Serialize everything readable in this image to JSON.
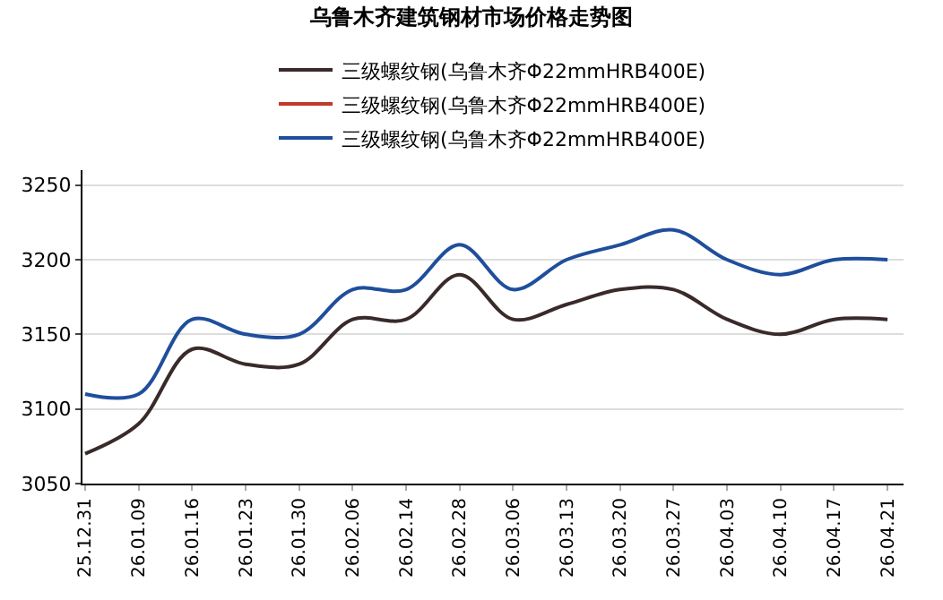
{
  "chart_data": {
    "type": "line",
    "title": "乌鲁木齐建筑钢材市场价格走势图",
    "categories": [
      "25.12.31",
      "26.01.09",
      "26.01.16",
      "26.01.23",
      "26.01.30",
      "26.02.06",
      "26.02.14",
      "26.02.28",
      "26.03.06",
      "26.03.13",
      "26.03.20",
      "26.03.27",
      "26.04.03",
      "26.04.10",
      "26.04.17",
      "26.04.21"
    ],
    "series": [
      {
        "name": "三级螺纹钢(乌鲁木齐Φ22mmHRB400E)",
        "color": "#3a2a2a",
        "values": [
          3070,
          3090,
          3140,
          3130,
          3130,
          3160,
          3160,
          3190,
          3160,
          3170,
          3180,
          3180,
          3160,
          3150,
          3160,
          3160
        ]
      },
      {
        "name": "三级螺纹钢(乌鲁木齐Φ22mmHRB400E)",
        "color": "#c0392b",
        "values": [
          null,
          null,
          null,
          null,
          null,
          null,
          null,
          null,
          null,
          null,
          null,
          null,
          null,
          null,
          null,
          null
        ]
      },
      {
        "name": "三级螺纹钢(乌鲁木齐Φ22mmHRB400E)",
        "color": "#1f4e9c",
        "values": [
          3110,
          3110,
          3160,
          3150,
          3150,
          3180,
          3180,
          3210,
          3180,
          3200,
          3210,
          3220,
          3200,
          3190,
          3200,
          3200
        ]
      }
    ],
    "ylim": [
      3050,
      3260
    ],
    "yticks": [
      3050,
      3100,
      3150,
      3200,
      3250
    ],
    "grid": "y",
    "legend": "top",
    "marker": "none",
    "line_style": "solid"
  }
}
